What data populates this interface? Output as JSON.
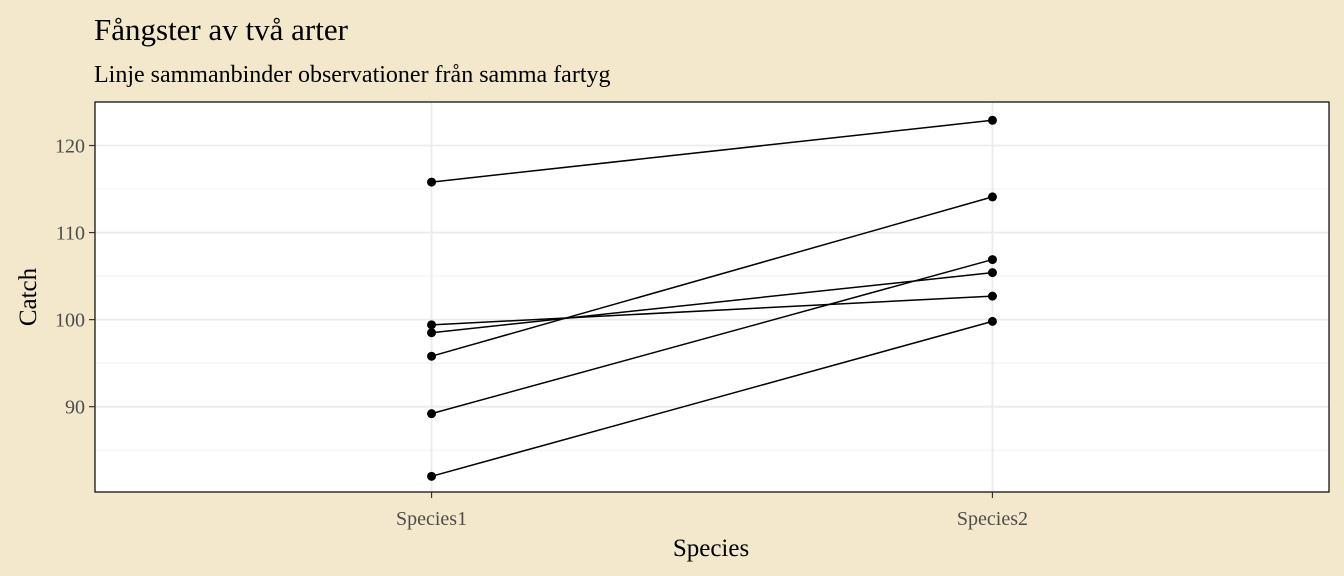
{
  "chart_data": {
    "type": "line",
    "title": "Fångster av två arter",
    "subtitle": "Linje sammanbinder observationer från samma fartyg",
    "xlabel": "Species",
    "ylabel": "Catch",
    "categories": [
      "Species1",
      "Species2"
    ],
    "ylim": [
      80.2,
      125.0
    ],
    "yticks": [
      90,
      100,
      110,
      120
    ],
    "grid": true,
    "legend": "none",
    "series": [
      {
        "values": [
          115.8,
          122.9
        ]
      },
      {
        "values": [
          99.4,
          102.7
        ]
      },
      {
        "values": [
          98.5,
          105.4
        ]
      },
      {
        "values": [
          95.8,
          114.1
        ]
      },
      {
        "values": [
          89.2,
          106.9
        ]
      },
      {
        "values": [
          82.0,
          99.8
        ]
      }
    ],
    "colors": {
      "background": "#f3e8cb",
      "panel": "#ffffff",
      "grid_major": "#ebebeb",
      "grid_minor": "#f4f4f4",
      "line": "#000000",
      "point": "#000000",
      "tick_text": "#4d4d4d",
      "axis_title": "#000000"
    }
  }
}
